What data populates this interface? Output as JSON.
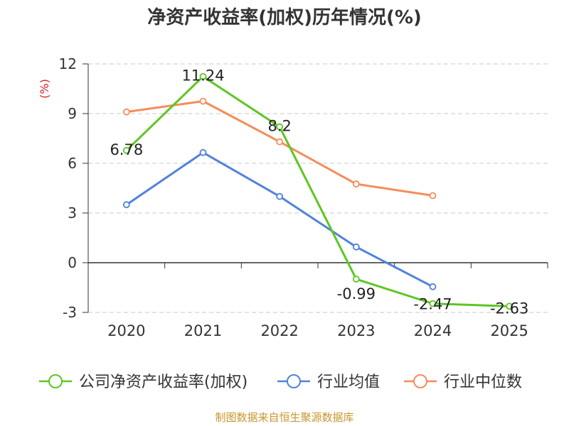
{
  "chart_data": {
    "type": "line",
    "title": "净资产收益率(加权)历年情况(%)",
    "ylabel": "(%)",
    "xlabel": "",
    "categories": [
      "2020",
      "2021",
      "2022",
      "2023",
      "2024",
      "2025"
    ],
    "ylim": [
      -3,
      12
    ],
    "yticks": [
      -3,
      0,
      3,
      6,
      9,
      12
    ],
    "grid": true,
    "legend_position": "bottom",
    "series": [
      {
        "name": "公司净资产收益率(加权)",
        "color": "#5ec623",
        "values": [
          6.78,
          11.24,
          8.2,
          -0.99,
          -2.47,
          -2.63
        ],
        "labels": [
          "6.78",
          "11.24",
          "8.2",
          "-0.99",
          "-2.47",
          "-2.63"
        ]
      },
      {
        "name": "行业均值",
        "color": "#5083d9",
        "values": [
          3.5,
          6.65,
          4.0,
          0.95,
          -1.45,
          null
        ]
      },
      {
        "name": "行业中位数",
        "color": "#f48d5c",
        "values": [
          9.1,
          9.75,
          7.3,
          4.75,
          4.05,
          null
        ]
      }
    ]
  },
  "footer": {
    "source": "制图数据来自恒生聚源数据库"
  }
}
